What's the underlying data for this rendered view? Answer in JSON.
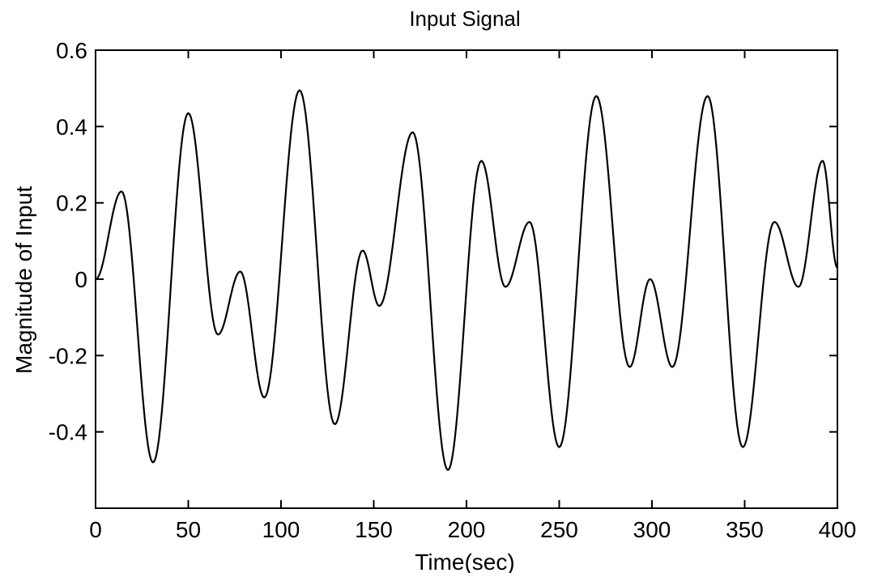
{
  "chart_data": {
    "type": "line",
    "title": "Input Signal",
    "xlabel": "Time(sec)",
    "ylabel": "Magnitude of Input",
    "xlim": [
      0,
      400
    ],
    "ylim": [
      -0.6,
      0.6
    ],
    "x_ticks": [
      0,
      50,
      100,
      150,
      200,
      250,
      300,
      350,
      400
    ],
    "x_tick_labels": [
      "0",
      "50",
      "100",
      "150",
      "200",
      "250",
      "300",
      "350",
      "400"
    ],
    "y_ticks": [
      0.6,
      0.4,
      0.2,
      0,
      -0.2,
      -0.4
    ],
    "y_tick_labels": [
      "0.6",
      "0.4",
      "0.2",
      "0",
      "-0.2",
      "-0.4"
    ],
    "grid": false,
    "legend": "none",
    "series": [
      {
        "color": "#000000",
        "points": [
          [
            0,
            0.0
          ],
          [
            14,
            0.23
          ],
          [
            31,
            -0.48
          ],
          [
            50,
            0.435
          ],
          [
            66,
            -0.145
          ],
          [
            78,
            0.02
          ],
          [
            91,
            -0.31
          ],
          [
            110,
            0.495
          ],
          [
            129,
            -0.38
          ],
          [
            144,
            0.075
          ],
          [
            153,
            -0.07
          ],
          [
            171,
            0.385
          ],
          [
            190,
            -0.5
          ],
          [
            208,
            0.31
          ],
          [
            221,
            -0.02
          ],
          [
            234,
            0.15
          ],
          [
            250,
            -0.44
          ],
          [
            270,
            0.48
          ],
          [
            288,
            -0.23
          ],
          [
            299,
            0.0
          ],
          [
            311,
            -0.23
          ],
          [
            330,
            0.48
          ],
          [
            349,
            -0.44
          ],
          [
            366,
            0.15
          ],
          [
            379,
            -0.02
          ],
          [
            392,
            0.31
          ],
          [
            400,
            0.03
          ]
        ]
      }
    ]
  }
}
